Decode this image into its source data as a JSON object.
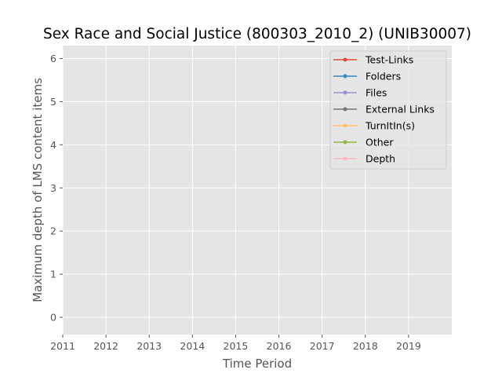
{
  "chart_data": {
    "type": "line",
    "title": "Sex Race and Social Justice (800303_2010_2) (UNIB30007)",
    "xlabel": "Time Period",
    "ylabel": "Maximum depth of LMS content items",
    "xlim": [
      2011,
      2020
    ],
    "ylim": [
      -0.4,
      6.3
    ],
    "xticks": [
      "2011",
      "2012",
      "2013",
      "2014",
      "2015",
      "2016",
      "2017",
      "2018",
      "2019"
    ],
    "yticks": [
      "0",
      "1",
      "2",
      "3",
      "4",
      "5",
      "6"
    ],
    "grid": true,
    "legend_position": "top-right",
    "series": [
      {
        "name": "Test-Links",
        "color": "#E24A33",
        "x": [],
        "y": []
      },
      {
        "name": "Folders",
        "color": "#348ABD",
        "x": [],
        "y": []
      },
      {
        "name": "Files",
        "color": "#988ED5",
        "x": [],
        "y": []
      },
      {
        "name": "External Links",
        "color": "#777777",
        "x": [],
        "y": []
      },
      {
        "name": "TurnItIn(s)",
        "color": "#FBC15E",
        "x": [],
        "y": []
      },
      {
        "name": "Other",
        "color": "#8EBA42",
        "x": [],
        "y": []
      },
      {
        "name": "Depth",
        "color": "#FFB5B8",
        "x": [],
        "y": []
      }
    ]
  }
}
